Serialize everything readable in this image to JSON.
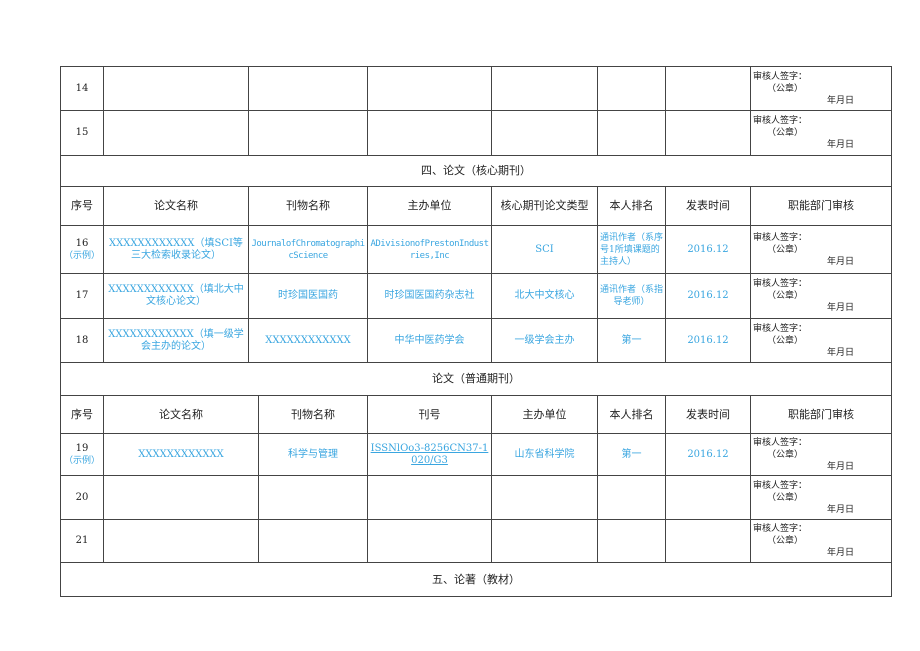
{
  "review": {
    "sign": "审核人签字：",
    "seal": "（公章）",
    "date": "年月日"
  },
  "top_rows": [
    {
      "no": "14"
    },
    {
      "no": "15"
    }
  ],
  "section4": {
    "title": "四、论文（核心期刊）",
    "headers": [
      "序号",
      "论文名称",
      "刊物名称",
      "主办单位",
      "核心期刊论文类型",
      "本人排名",
      "发表时间",
      "职能部门审核"
    ],
    "rows": [
      {
        "no": "16",
        "example": "（示例）",
        "title": "XXXXXXXXXXXX（填SCI等三大检索收录论文）",
        "journal": "JournalofChromatographicScience",
        "sponsor": "ADivisionofPrestonIndustries,Inc",
        "type": "SCI",
        "rank": "通讯作者（系序号1所填课题的主持人）",
        "date": "2016.12"
      },
      {
        "no": "17",
        "title": "XXXXXXXXXXXX（填北大中文核心论文）",
        "journal": "时珍国医国药",
        "sponsor": "时珍国医国药杂志社",
        "type": "北大中文核心",
        "rank": "通讯作者（系指导老师）",
        "date": "2016.12"
      },
      {
        "no": "18",
        "title": "XXXXXXXXXXXX（填一级学会主办的论文）",
        "journal": "XXXXXXXXXXXX",
        "sponsor": "中华中医药学会",
        "type": "一级学会主办",
        "rank": "第一",
        "date": "2016.12"
      }
    ]
  },
  "section_general": {
    "title": "论文（普通期刊）",
    "headers": [
      "序号",
      "论文名称",
      "刊物名称",
      "刊号",
      "主办单位",
      "本人排名",
      "发表时间",
      "职能部门审核"
    ],
    "rows": [
      {
        "no": "19",
        "example": "（示例）",
        "title": "XXXXXXXXXXXX",
        "journal": "科学与管理",
        "issn": "ISSNlOo3-8256CN37-1020/G3",
        "sponsor": "山东省科学院",
        "rank": "第一",
        "date": "2016.12"
      },
      {
        "no": "20"
      },
      {
        "no": "21"
      }
    ]
  },
  "section5": {
    "title": "五、论著（教材）"
  }
}
